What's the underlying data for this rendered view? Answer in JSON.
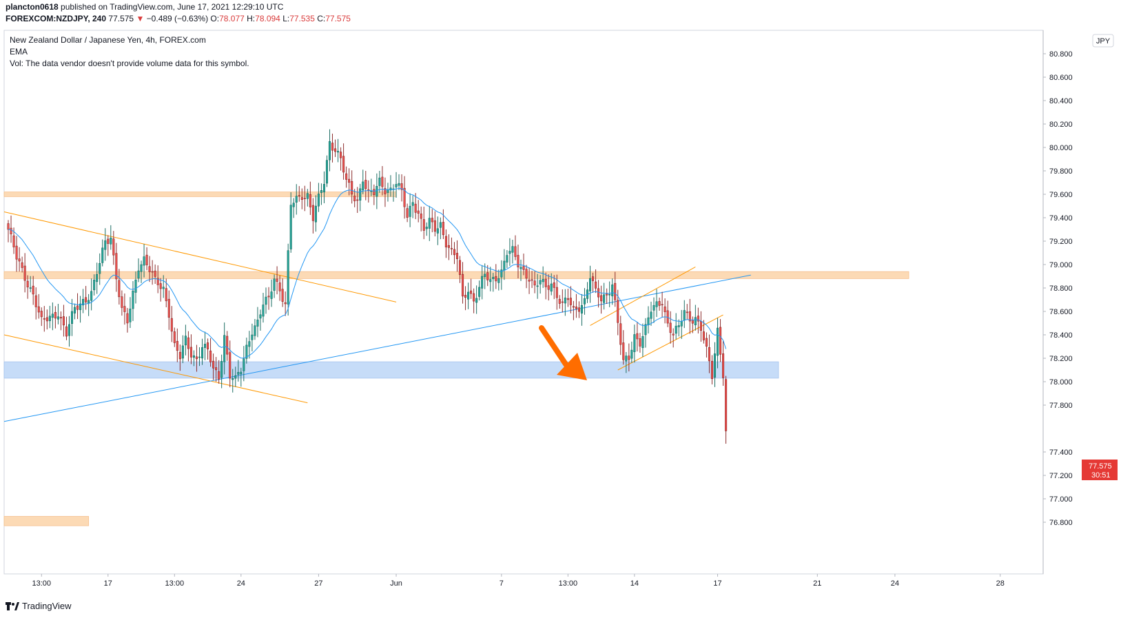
{
  "header": {
    "author": "plancton0618",
    "published_text": "published on TradingView.com, June 17, 2021 12:29:10 UTC",
    "symbol": "FOREXCOM:NZDJPY, 240",
    "last": "77.575",
    "change": "−0.489 (−0.63%)",
    "o_label": "O:",
    "o": "78.077",
    "h_label": "H:",
    "h": "78.094",
    "l_label": "L:",
    "l": "77.535",
    "c_label": "C:",
    "c": "77.575"
  },
  "legend": {
    "title": "New Zealand Dollar / Japanese Yen, 4h, FOREX.com",
    "ema": "EMA",
    "vol": "Vol: The data vendor doesn't provide volume data for this symbol."
  },
  "price_badge": {
    "price": "77.575",
    "countdown": "30:51"
  },
  "currency_label": "JPY",
  "footer": {
    "brand": "TradingView"
  },
  "colors": {
    "up": "#26a69a",
    "down": "#ef5350",
    "wick_up": "#1b6d63",
    "wick_down": "#8b2b2b",
    "ema": "#2196f3",
    "orange": "#ff9800",
    "zone_orange": "#fbd3a8",
    "zone_blue": "#bcd6f7",
    "arrow": "#ff6d00"
  },
  "chart_data": {
    "type": "candlestick",
    "symbol": "FOREXCOM:NZDJPY",
    "timeframe": "4h",
    "y_ticks": [
      80.8,
      80.6,
      80.4,
      80.2,
      80.0,
      79.8,
      79.6,
      79.4,
      79.2,
      79.0,
      78.8,
      78.6,
      78.4,
      78.2,
      78.0,
      77.8,
      77.4,
      77.2,
      77.0,
      76.8
    ],
    "y_tick_labels": [
      "80.800",
      "80.600",
      "80.400",
      "80.200",
      "80.000",
      "79.800",
      "79.600",
      "79.400",
      "79.200",
      "79.000",
      "78.800",
      "78.600",
      "78.400",
      "78.200",
      "78.000",
      "77.800",
      "77.400",
      "77.200",
      "77.000",
      "76.800"
    ],
    "x_ticks": [
      {
        "label": "13:00",
        "bar": 12
      },
      {
        "label": "17",
        "bar": 36
      },
      {
        "label": "13:00",
        "bar": 60
      },
      {
        "label": "24",
        "bar": 84
      },
      {
        "label": "27",
        "bar": 112
      },
      {
        "label": "Jun",
        "bar": 140
      },
      {
        "label": "7",
        "bar": 178
      },
      {
        "label": "13:00",
        "bar": 202
      },
      {
        "label": "14",
        "bar": 226
      },
      {
        "label": "17",
        "bar": 256
      },
      {
        "label": "21",
        "bar": 292
      },
      {
        "label": "24",
        "bar": 320
      },
      {
        "label": "28",
        "bar": 358
      }
    ],
    "total_bars": 372,
    "anchors": [
      [
        0,
        79.3
      ],
      [
        3,
        79.05
      ],
      [
        6,
        78.9
      ],
      [
        9,
        78.75
      ],
      [
        12,
        78.5
      ],
      [
        15,
        78.55
      ],
      [
        18,
        78.6
      ],
      [
        21,
        78.4
      ],
      [
        24,
        78.62
      ],
      [
        27,
        78.7
      ],
      [
        30,
        78.75
      ],
      [
        33,
        79.0
      ],
      [
        35,
        79.2
      ],
      [
        37,
        79.25
      ],
      [
        39,
        78.9
      ],
      [
        41,
        78.6
      ],
      [
        43,
        78.5
      ],
      [
        45,
        78.75
      ],
      [
        47,
        79.0
      ],
      [
        49,
        79.05
      ],
      [
        51,
        78.95
      ],
      [
        53,
        78.85
      ],
      [
        56,
        78.8
      ],
      [
        58,
        78.6
      ],
      [
        60,
        78.3
      ],
      [
        62,
        78.2
      ],
      [
        64,
        78.35
      ],
      [
        66,
        78.25
      ],
      [
        68,
        78.2
      ],
      [
        70,
        78.3
      ],
      [
        72,
        78.25
      ],
      [
        74,
        78.1
      ],
      [
        76,
        78.05
      ],
      [
        78,
        78.4
      ],
      [
        80,
        78.05
      ],
      [
        82,
        78.0
      ],
      [
        84,
        78.1
      ],
      [
        86,
        78.3
      ],
      [
        88,
        78.45
      ],
      [
        90,
        78.5
      ],
      [
        92,
        78.65
      ],
      [
        94,
        78.7
      ],
      [
        96,
        78.9
      ],
      [
        98,
        78.8
      ],
      [
        100,
        78.65
      ],
      [
        102,
        79.5
      ],
      [
        104,
        79.55
      ],
      [
        106,
        79.6
      ],
      [
        108,
        79.6
      ],
      [
        110,
        79.4
      ],
      [
        112,
        79.55
      ],
      [
        114,
        79.7
      ],
      [
        116,
        80.05
      ],
      [
        118,
        80.0
      ],
      [
        120,
        79.9
      ],
      [
        122,
        79.7
      ],
      [
        124,
        79.6
      ],
      [
        126,
        79.55
      ],
      [
        128,
        79.75
      ],
      [
        130,
        79.6
      ],
      [
        132,
        79.6
      ],
      [
        134,
        79.7
      ],
      [
        136,
        79.65
      ],
      [
        138,
        79.65
      ],
      [
        140,
        79.7
      ],
      [
        142,
        79.6
      ],
      [
        144,
        79.4
      ],
      [
        146,
        79.55
      ],
      [
        148,
        79.45
      ],
      [
        150,
        79.3
      ],
      [
        152,
        79.35
      ],
      [
        154,
        79.3
      ],
      [
        156,
        79.35
      ],
      [
        158,
        79.2
      ],
      [
        160,
        79.1
      ],
      [
        162,
        79.05
      ],
      [
        164,
        78.7
      ],
      [
        166,
        78.8
      ],
      [
        168,
        78.7
      ],
      [
        170,
        78.8
      ],
      [
        172,
        78.9
      ],
      [
        174,
        78.85
      ],
      [
        176,
        78.9
      ],
      [
        178,
        78.95
      ],
      [
        180,
        79.1
      ],
      [
        182,
        79.1
      ],
      [
        184,
        79.0
      ],
      [
        186,
        78.95
      ],
      [
        188,
        78.9
      ],
      [
        190,
        78.8
      ],
      [
        192,
        78.85
      ],
      [
        194,
        78.8
      ],
      [
        196,
        78.85
      ],
      [
        198,
        78.75
      ],
      [
        200,
        78.65
      ],
      [
        202,
        78.7
      ],
      [
        204,
        78.6
      ],
      [
        206,
        78.65
      ],
      [
        208,
        78.7
      ],
      [
        210,
        78.9
      ],
      [
        212,
        78.75
      ],
      [
        214,
        78.7
      ],
      [
        216,
        78.75
      ],
      [
        218,
        78.85
      ],
      [
        220,
        78.5
      ],
      [
        222,
        78.15
      ],
      [
        224,
        78.2
      ],
      [
        226,
        78.4
      ],
      [
        228,
        78.35
      ],
      [
        230,
        78.45
      ],
      [
        232,
        78.6
      ],
      [
        234,
        78.65
      ],
      [
        236,
        78.7
      ],
      [
        238,
        78.5
      ],
      [
        240,
        78.4
      ],
      [
        242,
        78.45
      ],
      [
        244,
        78.6
      ],
      [
        246,
        78.55
      ],
      [
        248,
        78.55
      ],
      [
        250,
        78.45
      ],
      [
        252,
        78.25
      ],
      [
        254,
        78.05
      ],
      [
        256,
        78.45
      ],
      [
        258,
        78.08
      ],
      [
        259,
        77.58
      ]
    ],
    "ema_period": 20,
    "zones": [
      {
        "color": "orange",
        "top": 79.62,
        "bottom": 79.58,
        "from_bar": 0,
        "to_bar": 140
      },
      {
        "color": "orange",
        "top": 78.94,
        "bottom": 78.88,
        "from_bar": 0,
        "to_bar": 325
      },
      {
        "color": "blue",
        "top": 78.17,
        "bottom": 78.03,
        "from_bar": 0,
        "to_bar": 278
      },
      {
        "color": "orange",
        "top": 76.85,
        "bottom": 76.77,
        "from_bar": 0,
        "to_bar": 29
      }
    ],
    "trendlines": [
      {
        "color": "orange",
        "bar1": 0,
        "price1": 79.45,
        "bar2": 140,
        "price2": 78.68
      },
      {
        "color": "orange",
        "bar1": 0,
        "price1": 78.4,
        "bar2": 108,
        "price2": 77.82
      },
      {
        "color": "blue",
        "bar1": 0,
        "price1": 77.66,
        "bar2": 268,
        "price2": 78.91
      },
      {
        "color": "orange",
        "bar1": 210,
        "price1": 78.48,
        "bar2": 248,
        "price2": 78.98
      },
      {
        "color": "orange",
        "bar1": 220,
        "price1": 78.1,
        "bar2": 258,
        "price2": 78.57
      }
    ]
  }
}
